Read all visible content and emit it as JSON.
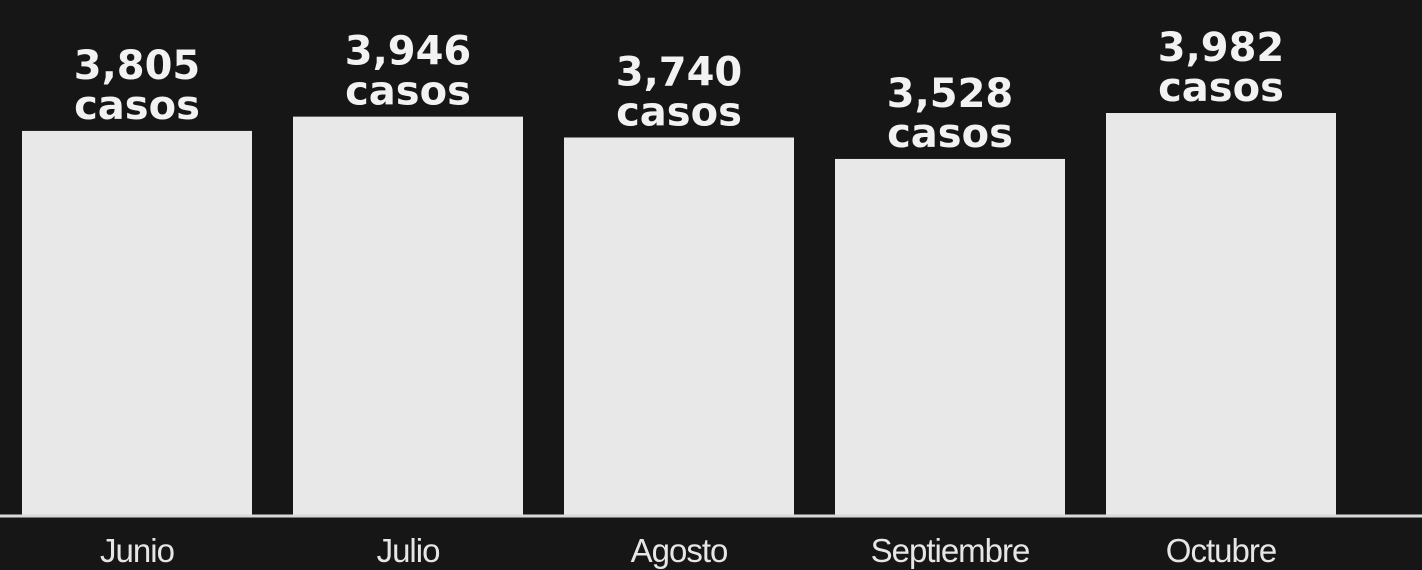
{
  "chart_data": {
    "type": "bar",
    "categories": [
      "Junio",
      "Julio",
      "Agosto",
      "Septiembre",
      "Octubre"
    ],
    "values": [
      3805,
      3946,
      3740,
      3528,
      3982
    ],
    "value_labels": [
      "3,805",
      "3,946",
      "3,740",
      "3,528",
      "3,982"
    ],
    "unit_label": "casos",
    "title": "",
    "xlabel": "",
    "ylabel": "",
    "ylim": [
      0,
      4000
    ],
    "grid": false,
    "legend": "none"
  },
  "colors": {
    "background": "#161616",
    "bar": "#e8e8e8",
    "text": "#f2f2f2",
    "axis": "#d9d9d9"
  }
}
